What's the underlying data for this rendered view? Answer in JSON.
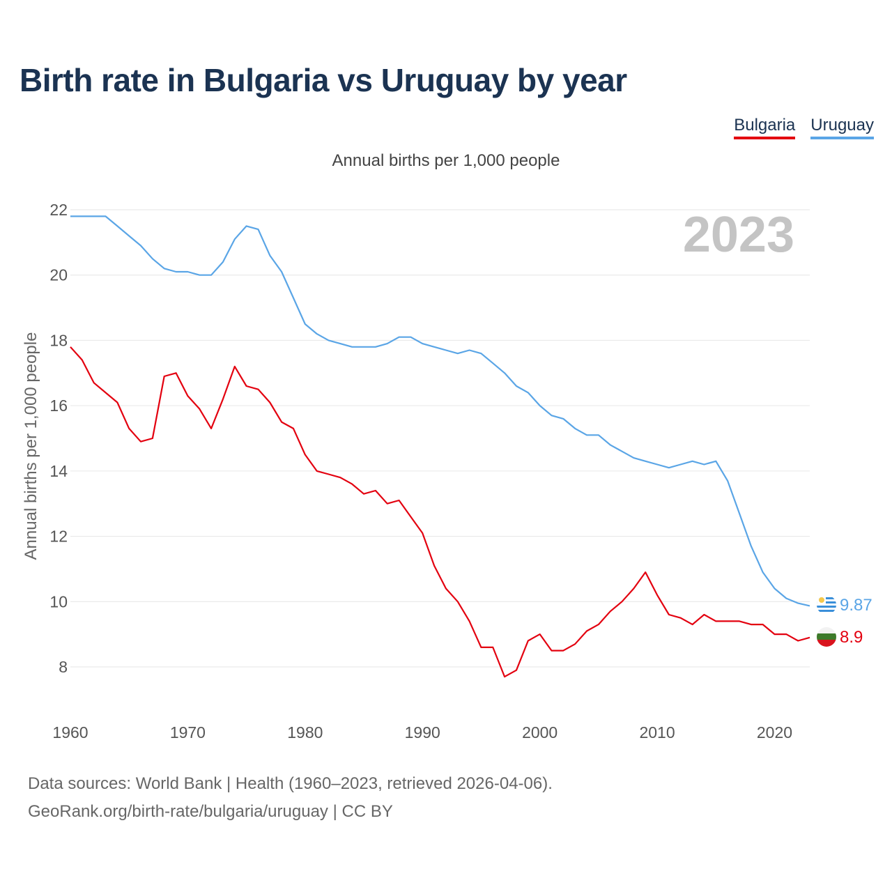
{
  "title": "Birth rate in Bulgaria vs Uruguay by year",
  "legend": {
    "bulgaria": "Bulgaria",
    "uruguay": "Uruguay"
  },
  "subtitle": "Annual births per 1,000 people",
  "year_badge": "2023",
  "footer": {
    "line1": "Data sources: World Bank | Health (1960–2023, retrieved 2026-04-06).",
    "line2": "GeoRank.org/birth-rate/bulgaria/uruguay | CC BY"
  },
  "colors": {
    "bulgaria": "#e3000f",
    "uruguay": "#5aa5e6",
    "title": "#1b3352",
    "badge": "#c4c4c4"
  },
  "chart_data": {
    "type": "line",
    "title": "Birth rate in Bulgaria vs Uruguay by year",
    "xlabel": "",
    "ylabel": "Annual births per 1,000 people",
    "xlim": [
      1960,
      2023
    ],
    "ylim": [
      7,
      22.5
    ],
    "xticks": [
      1960,
      1970,
      1980,
      1990,
      2000,
      2010,
      2020
    ],
    "yticks": [
      8,
      10,
      12,
      14,
      16,
      18,
      20,
      22
    ],
    "grid": true,
    "legend_position": "top-right",
    "x": [
      1960,
      1961,
      1962,
      1963,
      1964,
      1965,
      1966,
      1967,
      1968,
      1969,
      1970,
      1971,
      1972,
      1973,
      1974,
      1975,
      1976,
      1977,
      1978,
      1979,
      1980,
      1981,
      1982,
      1983,
      1984,
      1985,
      1986,
      1987,
      1988,
      1989,
      1990,
      1991,
      1992,
      1993,
      1994,
      1995,
      1996,
      1997,
      1998,
      1999,
      2000,
      2001,
      2002,
      2003,
      2004,
      2005,
      2006,
      2007,
      2008,
      2009,
      2010,
      2011,
      2012,
      2013,
      2014,
      2015,
      2016,
      2017,
      2018,
      2019,
      2020,
      2021,
      2022,
      2023
    ],
    "series": [
      {
        "name": "Uruguay",
        "end_label": "9.87",
        "values": [
          21.8,
          21.8,
          21.8,
          21.8,
          21.5,
          21.2,
          20.9,
          20.5,
          20.2,
          20.1,
          20.1,
          20.0,
          20.0,
          20.4,
          21.1,
          21.5,
          21.4,
          20.6,
          20.1,
          19.3,
          18.5,
          18.2,
          18.0,
          17.9,
          17.8,
          17.8,
          17.8,
          17.9,
          18.1,
          18.1,
          17.9,
          17.8,
          17.7,
          17.6,
          17.7,
          17.6,
          17.3,
          17.0,
          16.6,
          16.4,
          16.0,
          15.7,
          15.6,
          15.3,
          15.1,
          15.1,
          14.8,
          14.6,
          14.4,
          14.3,
          14.2,
          14.1,
          14.2,
          14.3,
          14.2,
          14.3,
          13.7,
          12.7,
          11.7,
          10.9,
          10.4,
          10.1,
          9.95,
          9.87
        ]
      },
      {
        "name": "Bulgaria",
        "end_label": "8.9",
        "values": [
          17.8,
          17.4,
          16.7,
          16.4,
          16.1,
          15.3,
          14.9,
          15.0,
          16.9,
          17.0,
          16.3,
          15.9,
          15.3,
          16.2,
          17.2,
          16.6,
          16.5,
          16.1,
          15.5,
          15.3,
          14.5,
          14.0,
          13.9,
          13.8,
          13.6,
          13.3,
          13.4,
          13.0,
          13.1,
          12.6,
          12.1,
          11.1,
          10.4,
          10.0,
          9.4,
          8.6,
          8.6,
          7.7,
          7.9,
          8.8,
          9.0,
          8.5,
          8.5,
          8.7,
          9.1,
          9.3,
          9.7,
          10.0,
          10.4,
          10.9,
          10.2,
          9.6,
          9.5,
          9.3,
          9.6,
          9.4,
          9.4,
          9.4,
          9.3,
          9.3,
          9.0,
          9.0,
          8.8,
          8.9
        ]
      }
    ]
  }
}
